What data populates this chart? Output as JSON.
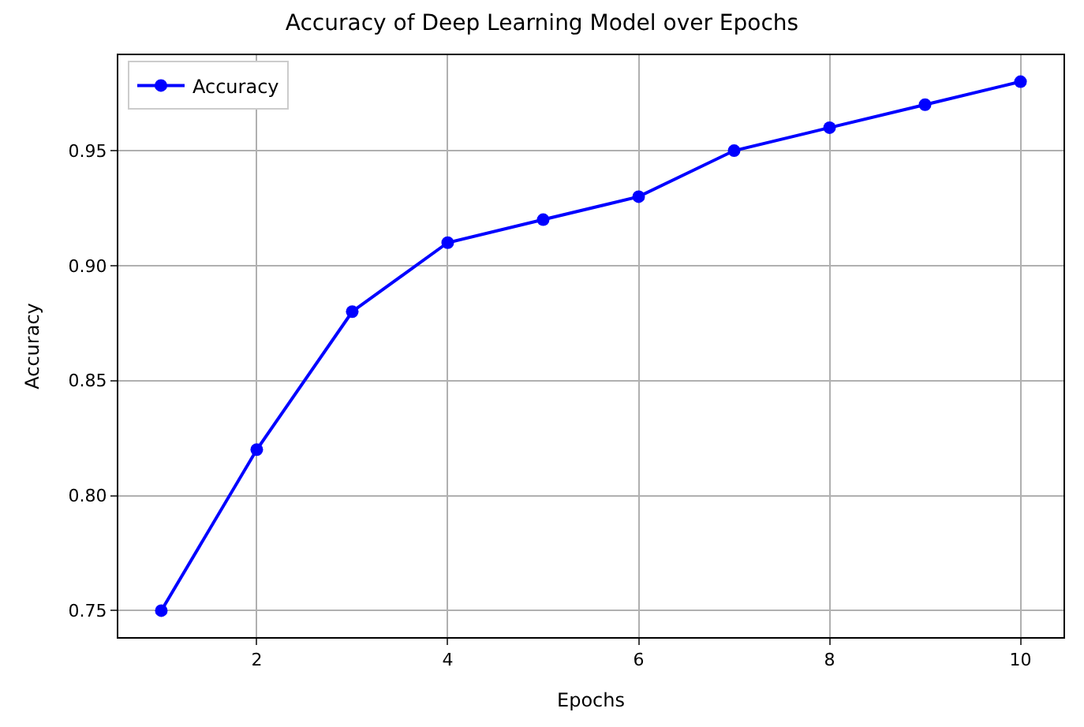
{
  "chart_data": {
    "type": "line",
    "title": "Accuracy of Deep Learning Model over Epochs",
    "xlabel": "Epochs",
    "ylabel": "Accuracy",
    "x": [
      1,
      2,
      3,
      4,
      5,
      6,
      7,
      8,
      9,
      10
    ],
    "series": [
      {
        "name": "Accuracy",
        "color": "#0000ff",
        "values": [
          0.75,
          0.82,
          0.88,
          0.91,
          0.92,
          0.93,
          0.95,
          0.96,
          0.97,
          0.98
        ]
      }
    ],
    "xlim": [
      0.55,
      10.45
    ],
    "xticks": [
      2,
      4,
      6,
      8,
      10
    ],
    "ylim": [
      0.7385,
      0.9915
    ],
    "yticks": [
      {
        "value": 0.75,
        "label": "0.75"
      },
      {
        "value": 0.8,
        "label": "0.80"
      },
      {
        "value": 0.85,
        "label": "0.85"
      },
      {
        "value": 0.9,
        "label": "0.90"
      },
      {
        "value": 0.95,
        "label": "0.95"
      }
    ],
    "grid": true,
    "legend": "top left",
    "marker": "circle",
    "line_style": "solid"
  }
}
